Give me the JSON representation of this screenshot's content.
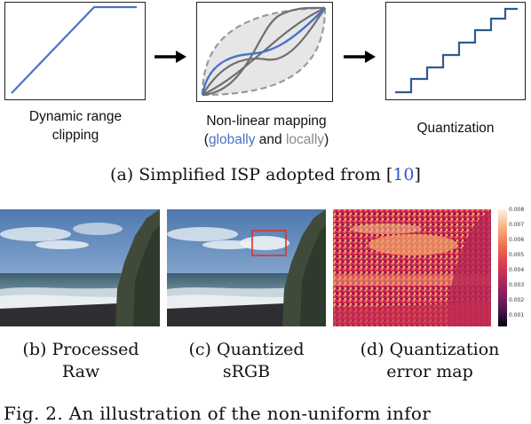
{
  "isp": {
    "step1_label_line1": "Dynamic range",
    "step1_label_line2": "clipping",
    "step2_label_line1": "Non-linear mapping",
    "step2_label_open": "(",
    "step2_globally": "globally",
    "step2_and": " and ",
    "step2_locally": "locally",
    "step2_label_close": ")",
    "step3_label": "Quantization",
    "caption_text": "(a) Simplified ISP adopted from [",
    "caption_ref": "10",
    "caption_close": "]"
  },
  "images": {
    "b_line1": "(b) Processed",
    "b_line2": "Raw",
    "c_line1": "(c) Quantized",
    "c_line2": "sRGB",
    "d_line1": "(d) Quantization",
    "d_line2": "error map"
  },
  "colorbar": {
    "ticks": [
      "0.008",
      "0.007",
      "0.006",
      "0.005",
      "0.004",
      "0.003",
      "0.002",
      "0.001"
    ]
  },
  "figure_caption": "Fig. 2. An illustration of the non-uniform infor",
  "colors": {
    "curve_blue": "#4a72c4",
    "curve_grey": "#888888",
    "highlight_red": "#e0312b",
    "ref_blue": "#2b55d6"
  }
}
